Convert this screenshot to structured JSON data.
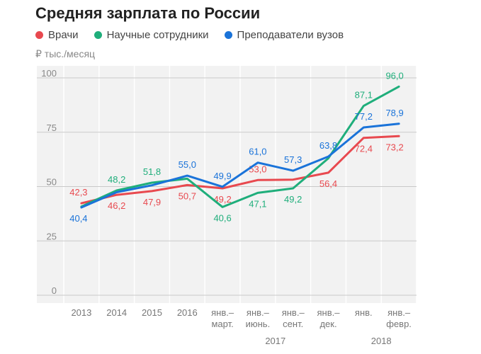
{
  "title": "Средняя зарплата по России",
  "unit_label": "₽ тыс./месяц",
  "chart_data": {
    "type": "line",
    "title": "Средняя зарплата по России",
    "ylabel": "₽ тыс./месяц",
    "ylim": [
      0,
      100
    ],
    "yticks": [
      0,
      25,
      50,
      75,
      100
    ],
    "grid": true,
    "legend_position": "top",
    "categories": [
      [
        "2013"
      ],
      [
        "2014"
      ],
      [
        "2015"
      ],
      [
        "2016"
      ],
      [
        "янв.–",
        "март."
      ],
      [
        "янв.–",
        "июнь."
      ],
      [
        "янв.–",
        "сент."
      ],
      [
        "янв.–",
        "дек."
      ],
      [
        "янв."
      ],
      [
        "янв.–",
        "февр."
      ]
    ],
    "year_groups": [
      {
        "label": "2017",
        "from": 4,
        "to": 7
      },
      {
        "label": "2018",
        "from": 8,
        "to": 9
      }
    ],
    "series": [
      {
        "name": "Врачи",
        "color": "#e8494f",
        "values": [
          42.3,
          46.2,
          47.9,
          50.7,
          49.2,
          53.0,
          53.2,
          56.4,
          72.4,
          73.2
        ],
        "labels": [
          "42,3",
          "46,2",
          "47,9",
          "50,7",
          "49,2",
          "53,0",
          "",
          "56,4",
          "72,4",
          "73,2"
        ]
      },
      {
        "name": "Научные сотрудники",
        "color": "#1fae7b",
        "values": [
          40.8,
          48.2,
          51.8,
          53.6,
          40.6,
          47.1,
          49.2,
          63.0,
          87.1,
          96.0
        ],
        "labels": [
          "",
          "48,2",
          "51,8",
          "",
          "40,6",
          "47,1",
          "49,2",
          "",
          "87,1",
          "96,0"
        ]
      },
      {
        "name": "Преподаватели вузов",
        "color": "#1a73d9",
        "values": [
          40.4,
          47.4,
          50.6,
          55.0,
          49.9,
          61.0,
          57.3,
          63.8,
          77.2,
          78.9
        ],
        "labels": [
          "40,4",
          "",
          "",
          "55,0",
          "49,9",
          "61,0",
          "57,3",
          "63,8",
          "77,2",
          "78,9"
        ]
      }
    ]
  }
}
